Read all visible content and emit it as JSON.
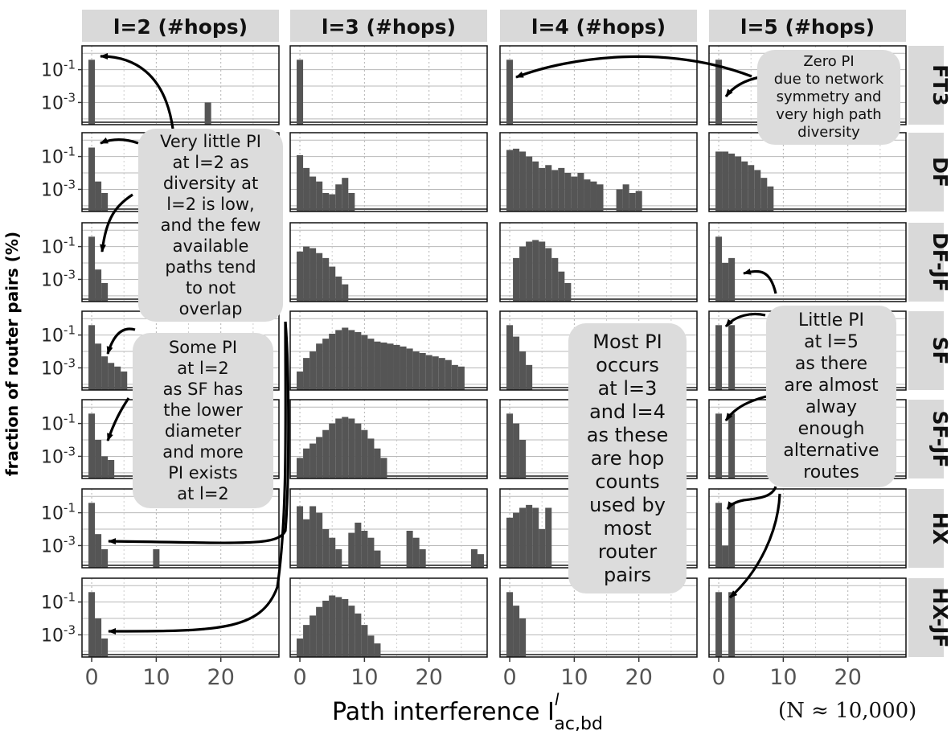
{
  "chart_data": {
    "type": "bar",
    "columns": [
      "l=2 (#hops)",
      "l=3 (#hops)",
      "l=4 (#hops)",
      "l=5 (#hops)"
    ],
    "rows": [
      "FT3",
      "DF",
      "DF-JF",
      "SF",
      "SF-JF",
      "HX",
      "HX-JF"
    ],
    "ylabel": "fraction of router pairs (%)",
    "xlabel": "Path interference  I",
    "xlabel_sup": "l",
    "xlabel_sub": "ac,bd",
    "xticks": [
      0,
      10,
      20
    ],
    "xlim": [
      -1.5,
      29
    ],
    "yticks": [
      "10-1",
      "10-3"
    ],
    "ylog_range": [
      -4.35,
      0.45
    ],
    "note": "(N ≈ 10,000)",
    "panels": [
      [
        [
          [
            0,
            0.4
          ],
          [
            18,
            0.001
          ]
        ],
        [
          [
            0,
            0.4
          ]
        ],
        [
          [
            0,
            0.4
          ]
        ],
        [
          [
            0,
            0.4
          ]
        ]
      ],
      [
        [
          [
            0,
            0.35
          ],
          [
            1,
            0.003
          ],
          [
            2,
            0.0006
          ]
        ],
        [
          [
            0,
            0.12
          ],
          [
            1,
            0.02
          ],
          [
            2,
            0.006
          ],
          [
            3,
            0.003
          ],
          [
            4,
            0.0006
          ],
          [
            5,
            0.0005
          ],
          [
            6,
            0.002
          ],
          [
            7,
            0.005
          ],
          [
            8,
            0.0006
          ]
        ],
        [
          [
            0,
            0.25
          ],
          [
            1,
            0.3
          ],
          [
            2,
            0.2
          ],
          [
            3,
            0.1
          ],
          [
            4,
            0.05
          ],
          [
            5,
            0.02
          ],
          [
            6,
            0.03
          ],
          [
            7,
            0.015
          ],
          [
            8,
            0.02
          ],
          [
            9,
            0.01
          ],
          [
            10,
            0.006
          ],
          [
            11,
            0.01
          ],
          [
            12,
            0.004
          ],
          [
            13,
            0.003
          ],
          [
            14,
            0.002
          ],
          [
            17,
            0.001
          ],
          [
            18,
            0.002
          ],
          [
            19,
            0.0006
          ],
          [
            20,
            0.0008
          ]
        ],
        [
          [
            0,
            0.2
          ],
          [
            1,
            0.2
          ],
          [
            2,
            0.15
          ],
          [
            3,
            0.1
          ],
          [
            4,
            0.05
          ],
          [
            5,
            0.03
          ],
          [
            6,
            0.015
          ],
          [
            7,
            0.005
          ],
          [
            8,
            0.0015
          ]
        ]
      ],
      [
        [
          [
            0,
            0.4
          ],
          [
            1,
            0.004
          ],
          [
            2,
            0.0006
          ]
        ],
        [
          [
            0,
            0.05
          ],
          [
            1,
            0.1
          ],
          [
            2,
            0.08
          ],
          [
            3,
            0.04
          ],
          [
            4,
            0.02
          ],
          [
            5,
            0.006
          ],
          [
            6,
            0.0015
          ],
          [
            7,
            0.0005
          ]
        ],
        [
          [
            1,
            0.02
          ],
          [
            2,
            0.1
          ],
          [
            3,
            0.2
          ],
          [
            4,
            0.25
          ],
          [
            5,
            0.2
          ],
          [
            6,
            0.08
          ],
          [
            7,
            0.02
          ],
          [
            8,
            0.003
          ],
          [
            9,
            0.0006
          ]
        ],
        [
          [
            0,
            0.4
          ],
          [
            1,
            0.01
          ],
          [
            2,
            0.02
          ]
        ]
      ],
      [
        [
          [
            0,
            0.4
          ],
          [
            1,
            0.03
          ],
          [
            2,
            0.005
          ],
          [
            3,
            0.002
          ],
          [
            4,
            0.0012
          ],
          [
            5,
            0.0006
          ]
        ],
        [
          [
            0,
            0.0006
          ],
          [
            1,
            0.004
          ],
          [
            2,
            0.01
          ],
          [
            3,
            0.03
          ],
          [
            4,
            0.06
          ],
          [
            5,
            0.12
          ],
          [
            6,
            0.2
          ],
          [
            7,
            0.28
          ],
          [
            8,
            0.2
          ],
          [
            9,
            0.15
          ],
          [
            10,
            0.1
          ],
          [
            11,
            0.06
          ],
          [
            12,
            0.04
          ],
          [
            13,
            0.035
          ],
          [
            14,
            0.03
          ],
          [
            15,
            0.025
          ],
          [
            16,
            0.02
          ],
          [
            17,
            0.015
          ],
          [
            18,
            0.01
          ],
          [
            19,
            0.008
          ],
          [
            20,
            0.006
          ],
          [
            21,
            0.005
          ],
          [
            22,
            0.004
          ],
          [
            23,
            0.003
          ],
          [
            24,
            0.0015
          ],
          [
            25,
            0.0012
          ]
        ],
        [
          [
            0,
            0.4
          ],
          [
            1,
            0.08
          ],
          [
            2,
            0.01
          ],
          [
            3,
            0.0015
          ]
        ],
        [
          [
            0,
            0.4
          ],
          [
            2,
            0.4
          ]
        ]
      ],
      [
        [
          [
            0,
            0.4
          ],
          [
            1,
            0.01
          ],
          [
            2,
            0.001
          ],
          [
            3,
            0.0006
          ]
        ],
        [
          [
            0,
            0.0008
          ],
          [
            1,
            0.003
          ],
          [
            2,
            0.006
          ],
          [
            3,
            0.015
          ],
          [
            4,
            0.04
          ],
          [
            5,
            0.1
          ],
          [
            6,
            0.2
          ],
          [
            7,
            0.25
          ],
          [
            8,
            0.2
          ],
          [
            9,
            0.1
          ],
          [
            10,
            0.04
          ],
          [
            11,
            0.012
          ],
          [
            12,
            0.003
          ],
          [
            13,
            0.0008
          ]
        ],
        [
          [
            0,
            0.4
          ],
          [
            1,
            0.1
          ],
          [
            2,
            0.01
          ]
        ],
        [
          [
            0,
            0.4
          ],
          [
            2,
            0.4
          ]
        ]
      ],
      [
        [
          [
            0,
            0.4
          ],
          [
            1,
            0.005
          ],
          [
            2,
            0.0006
          ],
          [
            10,
            0.0006
          ]
        ],
        [
          [
            0,
            0.25
          ],
          [
            1,
            0.04
          ],
          [
            2,
            0.25
          ],
          [
            3,
            0.1
          ],
          [
            4,
            0.01
          ],
          [
            5,
            0.003
          ],
          [
            6,
            0.0006
          ],
          [
            8,
            0.006
          ],
          [
            9,
            0.025
          ],
          [
            10,
            0.008
          ],
          [
            11,
            0.003
          ],
          [
            12,
            0.0005
          ],
          [
            17,
            0.008
          ],
          [
            18,
            0.003
          ],
          [
            19,
            0.0006
          ],
          [
            27,
            0.0006
          ],
          [
            28,
            0.0003
          ]
        ],
        [
          [
            0,
            0.05
          ],
          [
            1,
            0.1
          ],
          [
            2,
            0.2
          ],
          [
            3,
            0.3
          ],
          [
            4,
            0.2
          ],
          [
            5,
            0.01
          ],
          [
            6,
            0.2
          ]
        ],
        [
          [
            0,
            0.4
          ],
          [
            1,
            0.001
          ],
          [
            2,
            0.4
          ]
        ]
      ],
      [
        [
          [
            0,
            0.4
          ],
          [
            1,
            0.01
          ],
          [
            2,
            0.0006
          ]
        ],
        [
          [
            0,
            0.0006
          ],
          [
            1,
            0.004
          ],
          [
            2,
            0.015
          ],
          [
            3,
            0.05
          ],
          [
            4,
            0.12
          ],
          [
            5,
            0.25
          ],
          [
            6,
            0.2
          ],
          [
            7,
            0.15
          ],
          [
            8,
            0.06
          ],
          [
            9,
            0.02
          ],
          [
            10,
            0.004
          ],
          [
            11,
            0.0009
          ],
          [
            12,
            0.0003
          ]
        ],
        [
          [
            0,
            0.4
          ],
          [
            1,
            0.06
          ],
          [
            2,
            0.01
          ]
        ],
        [
          [
            0,
            0.4
          ],
          [
            2,
            0.4
          ]
        ]
      ]
    ]
  },
  "callouts": {
    "ft3": [
      "Zero PI",
      "due to network",
      "symmetry and",
      "very high path",
      "diversity"
    ],
    "l2_little": [
      "Very little PI",
      "at l=2 as",
      "diversity at",
      "l=2 is low,",
      "and the few",
      "available",
      "paths tend",
      "to not",
      "overlap"
    ],
    "sf_some": [
      "Some PI",
      "at l=2",
      "as SF has",
      "the lower",
      "diameter",
      "and more",
      "PI exists",
      "at l=2"
    ],
    "most_pi": [
      "Most PI",
      "occurs",
      "at l=3",
      "and l=4",
      "as these",
      "are hop",
      "counts",
      "used by",
      "most",
      "router",
      "pairs"
    ],
    "little_l5": [
      "Little PI",
      "at l=5",
      "as there",
      "are almost",
      "alway",
      "enough",
      "alternative",
      "routes"
    ]
  },
  "colors": {
    "bar": "#555555",
    "strip_bg": "#d9d9d9",
    "callout_bg": "#dcdcdc"
  }
}
